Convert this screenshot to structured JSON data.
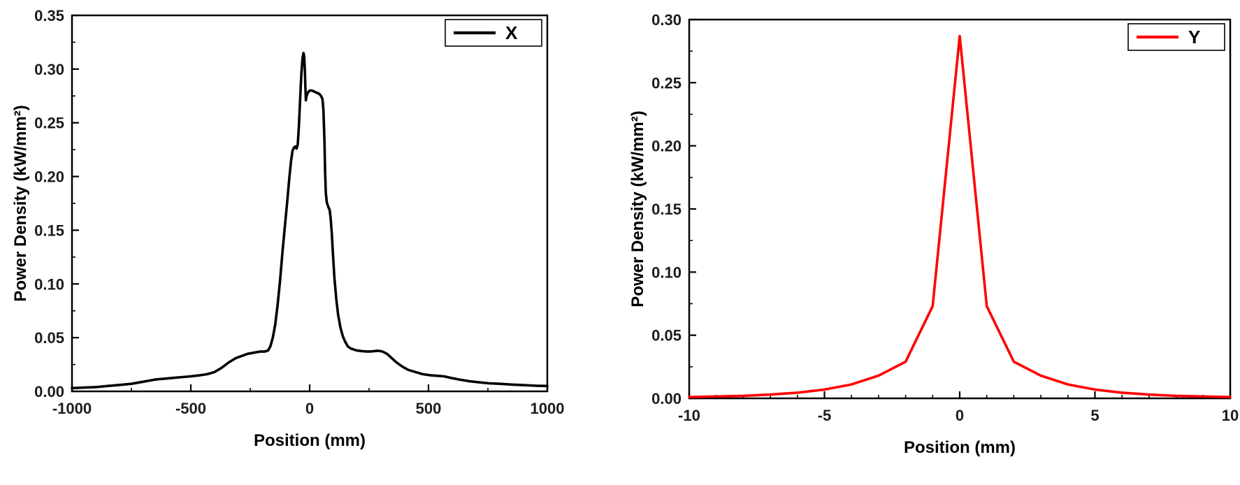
{
  "page": {
    "background": "#ffffff"
  },
  "chart_data": [
    {
      "type": "line",
      "title": "",
      "xlabel": "Position (mm)",
      "ylabel": "Power Density (kW/mm²)",
      "xlim": [
        -1000,
        1000
      ],
      "ylim": [
        0.0,
        0.35
      ],
      "xticks": [
        -1000,
        -500,
        0,
        500,
        1000
      ],
      "yticks": [
        0.0,
        0.05,
        0.1,
        0.15,
        0.2,
        0.25,
        0.3,
        0.35
      ],
      "x_minor_step": 250,
      "y_minor_step": 0.025,
      "x_tick_decimals": 0,
      "y_tick_decimals": 2,
      "grid": false,
      "legend": {
        "label": "X",
        "position": "top-right",
        "border_color": "#000000",
        "fill": "#ffffff"
      },
      "series": [
        {
          "name": "X",
          "color": "#000000",
          "points": [
            [
              -1000,
              0.003
            ],
            [
              -950,
              0.0035
            ],
            [
              -900,
              0.004
            ],
            [
              -850,
              0.005
            ],
            [
              -800,
              0.006
            ],
            [
              -750,
              0.007
            ],
            [
              -700,
              0.009
            ],
            [
              -650,
              0.011
            ],
            [
              -600,
              0.012
            ],
            [
              -550,
              0.013
            ],
            [
              -500,
              0.014
            ],
            [
              -460,
              0.015
            ],
            [
              -430,
              0.016
            ],
            [
              -400,
              0.018
            ],
            [
              -370,
              0.022
            ],
            [
              -340,
              0.027
            ],
            [
              -310,
              0.031
            ],
            [
              -285,
              0.033
            ],
            [
              -260,
              0.035
            ],
            [
              -235,
              0.036
            ],
            [
              -210,
              0.037
            ],
            [
              -190,
              0.037
            ],
            [
              -175,
              0.038
            ],
            [
              -165,
              0.042
            ],
            [
              -155,
              0.05
            ],
            [
              -145,
              0.062
            ],
            [
              -135,
              0.08
            ],
            [
              -125,
              0.102
            ],
            [
              -115,
              0.128
            ],
            [
              -105,
              0.152
            ],
            [
              -95,
              0.175
            ],
            [
              -85,
              0.2
            ],
            [
              -78,
              0.215
            ],
            [
              -72,
              0.224
            ],
            [
              -66,
              0.227
            ],
            [
              -60,
              0.228
            ],
            [
              -55,
              0.226
            ],
            [
              -50,
              0.23
            ],
            [
              -45,
              0.248
            ],
            [
              -40,
              0.272
            ],
            [
              -35,
              0.295
            ],
            [
              -30,
              0.31
            ],
            [
              -26,
              0.315
            ],
            [
              -23,
              0.312
            ],
            [
              -20,
              0.298
            ],
            [
              -18,
              0.283
            ],
            [
              -16,
              0.271
            ],
            [
              -13,
              0.275
            ],
            [
              -8,
              0.278
            ],
            [
              0,
              0.28
            ],
            [
              10,
              0.28
            ],
            [
              20,
              0.279
            ],
            [
              30,
              0.278
            ],
            [
              40,
              0.277
            ],
            [
              48,
              0.275
            ],
            [
              54,
              0.272
            ],
            [
              58,
              0.262
            ],
            [
              62,
              0.235
            ],
            [
              65,
              0.205
            ],
            [
              68,
              0.185
            ],
            [
              72,
              0.176
            ],
            [
              78,
              0.172
            ],
            [
              84,
              0.169
            ],
            [
              88,
              0.162
            ],
            [
              93,
              0.148
            ],
            [
              98,
              0.128
            ],
            [
              104,
              0.106
            ],
            [
              112,
              0.086
            ],
            [
              120,
              0.071
            ],
            [
              130,
              0.059
            ],
            [
              140,
              0.051
            ],
            [
              150,
              0.046
            ],
            [
              160,
              0.042
            ],
            [
              172,
              0.04
            ],
            [
              185,
              0.039
            ],
            [
              200,
              0.038
            ],
            [
              220,
              0.0375
            ],
            [
              245,
              0.037
            ],
            [
              265,
              0.0373
            ],
            [
              285,
              0.0378
            ],
            [
              305,
              0.0372
            ],
            [
              325,
              0.035
            ],
            [
              345,
              0.031
            ],
            [
              365,
              0.027
            ],
            [
              390,
              0.023
            ],
            [
              415,
              0.02
            ],
            [
              445,
              0.018
            ],
            [
              475,
              0.016
            ],
            [
              505,
              0.015
            ],
            [
              535,
              0.0145
            ],
            [
              565,
              0.014
            ],
            [
              595,
              0.0125
            ],
            [
              630,
              0.011
            ],
            [
              670,
              0.0095
            ],
            [
              710,
              0.0085
            ],
            [
              755,
              0.0075
            ],
            [
              800,
              0.007
            ],
            [
              850,
              0.0063
            ],
            [
              900,
              0.0058
            ],
            [
              950,
              0.0053
            ],
            [
              1000,
              0.005
            ]
          ]
        }
      ]
    },
    {
      "type": "line",
      "title": "",
      "xlabel": "Position (mm)",
      "ylabel": "Power Density (kW/mm²)",
      "xlim": [
        -10,
        10
      ],
      "ylim": [
        0.0,
        0.3
      ],
      "xticks": [
        -10,
        -5,
        0,
        5,
        10
      ],
      "yticks": [
        0.0,
        0.05,
        0.1,
        0.15,
        0.2,
        0.25,
        0.3
      ],
      "x_minor_step": 1,
      "y_minor_step": 0.025,
      "x_tick_decimals": 0,
      "y_tick_decimals": 2,
      "grid": false,
      "legend": {
        "label": "Y",
        "position": "top-right",
        "border_color": "#000000",
        "fill": "#ffffff"
      },
      "series": [
        {
          "name": "Y",
          "color": "#ff0000",
          "points": [
            [
              -10,
              0.001
            ],
            [
              -9,
              0.0015
            ],
            [
              -8,
              0.002
            ],
            [
              -7,
              0.003
            ],
            [
              -6,
              0.0045
            ],
            [
              -5,
              0.007
            ],
            [
              -4,
              0.011
            ],
            [
              -3,
              0.018
            ],
            [
              -2,
              0.029
            ],
            [
              -1,
              0.073
            ],
            [
              0,
              0.287
            ],
            [
              1,
              0.073
            ],
            [
              2,
              0.029
            ],
            [
              3,
              0.018
            ],
            [
              4,
              0.011
            ],
            [
              5,
              0.007
            ],
            [
              6,
              0.0045
            ],
            [
              7,
              0.003
            ],
            [
              8,
              0.002
            ],
            [
              9,
              0.0015
            ],
            [
              10,
              0.001
            ]
          ]
        }
      ]
    }
  ]
}
